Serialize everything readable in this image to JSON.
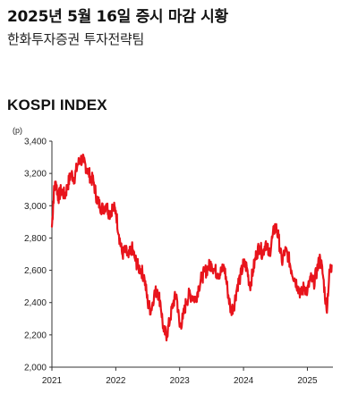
{
  "header": {
    "title": "2025년 5월 16일 증시 마감 시황",
    "subtitle": "한화투자증권 투자전략팀"
  },
  "chart_data": {
    "type": "line",
    "title": "KOSPI INDEX",
    "unit_label": "(p)",
    "xlabel": "",
    "ylabel": "",
    "ylim": [
      2000,
      3400
    ],
    "yticks": [
      2000,
      2200,
      2400,
      2600,
      2800,
      3000,
      3200,
      3400
    ],
    "ytick_labels": [
      "2,000",
      "2,200",
      "2,400",
      "2,600",
      "2,800",
      "3,000",
      "3,200",
      "3,400"
    ],
    "xlim": [
      2021.0,
      2025.4
    ],
    "xticks": [
      2021,
      2022,
      2023,
      2024,
      2025
    ],
    "xtick_labels": [
      "2021",
      "2022",
      "2023",
      "2024",
      "2025"
    ],
    "grid": false,
    "legend": "none",
    "line_color": "#e8141c",
    "series": [
      {
        "x": [
          2021.0,
          2021.03,
          2021.06,
          2021.1,
          2021.15,
          2021.2,
          2021.25,
          2021.3,
          2021.35,
          2021.4,
          2021.45,
          2021.5,
          2021.55,
          2021.6,
          2021.65,
          2021.7,
          2021.75,
          2021.8,
          2021.85,
          2021.9,
          2021.95,
          2022.0,
          2022.05,
          2022.1,
          2022.15,
          2022.2,
          2022.25,
          2022.3,
          2022.35,
          2022.4,
          2022.45,
          2022.5,
          2022.55,
          2022.6,
          2022.65,
          2022.7,
          2022.75,
          2022.8,
          2022.85,
          2022.9,
          2022.95,
          2023.0,
          2023.05,
          2023.1,
          2023.15,
          2023.2,
          2023.25,
          2023.3,
          2023.35,
          2023.4,
          2023.45,
          2023.5,
          2023.55,
          2023.6,
          2023.65,
          2023.7,
          2023.75,
          2023.8,
          2023.85,
          2023.9,
          2023.95,
          2024.0,
          2024.05,
          2024.1,
          2024.15,
          2024.2,
          2024.25,
          2024.3,
          2024.35,
          2024.4,
          2024.45,
          2024.5,
          2024.55,
          2024.6,
          2024.65,
          2024.7,
          2024.75,
          2024.8,
          2024.85,
          2024.9,
          2024.95,
          2025.0,
          2025.05,
          2025.1,
          2025.15,
          2025.2,
          2025.25,
          2025.3,
          2025.35,
          2025.38
        ],
        "y": [
          2870,
          3080,
          3150,
          3050,
          3100,
          3060,
          3130,
          3200,
          3170,
          3250,
          3290,
          3270,
          3230,
          3180,
          3150,
          3050,
          3000,
          2980,
          3010,
          2950,
          2990,
          2970,
          2820,
          2700,
          2720,
          2680,
          2740,
          2670,
          2620,
          2600,
          2550,
          2400,
          2350,
          2450,
          2480,
          2400,
          2220,
          2200,
          2300,
          2400,
          2450,
          2250,
          2300,
          2400,
          2450,
          2440,
          2420,
          2500,
          2560,
          2590,
          2620,
          2640,
          2600,
          2580,
          2590,
          2620,
          2480,
          2350,
          2380,
          2500,
          2560,
          2640,
          2620,
          2500,
          2600,
          2700,
          2750,
          2700,
          2780,
          2690,
          2800,
          2880,
          2800,
          2650,
          2720,
          2690,
          2600,
          2550,
          2500,
          2450,
          2500,
          2470,
          2550,
          2520,
          2600,
          2680,
          2550,
          2350,
          2600,
          2630
        ]
      }
    ]
  }
}
